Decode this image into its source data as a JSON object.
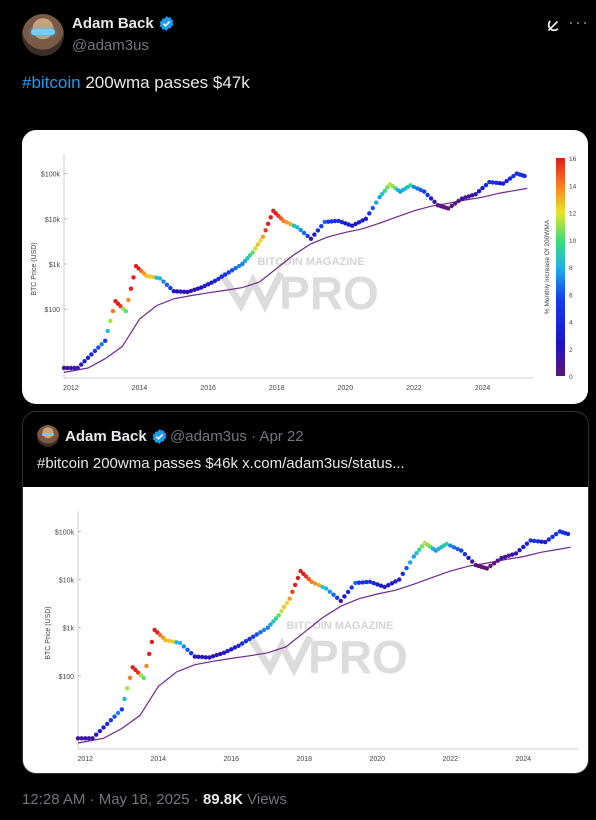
{
  "author": {
    "name": "Adam Back",
    "handle": "@adam3us"
  },
  "post": {
    "hashtag": "#bitcoin",
    "text": " 200wma passes $47k"
  },
  "quote": {
    "author_name": "Adam Back",
    "meta": "@adam3us · Apr 22",
    "text": "#bitcoin 200wma passes $46k x.com/adam3us/status..."
  },
  "footer": {
    "time": "12:28 AM · May 18, 2025 · ",
    "views_count": "89.8K",
    "views_label": " Views"
  },
  "chart_data": {
    "type": "scatter",
    "title": "",
    "xlabel": "",
    "ylabel": "BTC Price (USD)",
    "colorbar_label": "% Monthly Increase Of 200WMA",
    "colorbar_ticks": [
      "0",
      "2",
      "4",
      "6",
      "8",
      "10",
      "12",
      "14",
      "16"
    ],
    "x_ticks": [
      "2012",
      "2014",
      "2016",
      "2018",
      "2020",
      "2022",
      "2024"
    ],
    "y_ticks": [
      "$100",
      "$1k",
      "$10k",
      "$100k"
    ],
    "watermark_top": "BITCOIN MAGAZINE",
    "watermark_main": "PRO",
    "series": [
      {
        "name": "BTC Price (USD)",
        "x": [
          2011.8,
          2012.2,
          2012.6,
          2013.0,
          2013.3,
          2013.6,
          2013.9,
          2014.2,
          2014.6,
          2015.0,
          2015.4,
          2015.8,
          2016.2,
          2016.6,
          2017.0,
          2017.3,
          2017.6,
          2017.9,
          2018.2,
          2018.6,
          2019.0,
          2019.4,
          2019.8,
          2020.2,
          2020.6,
          2021.0,
          2021.3,
          2021.6,
          2021.9,
          2022.3,
          2022.7,
          2023.0,
          2023.4,
          2023.8,
          2024.2,
          2024.6,
          2025.0,
          2025.3
        ],
        "y": [
          5,
          5,
          10,
          20,
          150,
          90,
          900,
          550,
          480,
          250,
          240,
          300,
          420,
          650,
          1000,
          1800,
          4000,
          15000,
          9000,
          6500,
          3600,
          8500,
          9000,
          7000,
          10000,
          30000,
          58000,
          40000,
          55000,
          40000,
          20000,
          17000,
          28000,
          35000,
          65000,
          60000,
          100000,
          85000
        ]
      },
      {
        "name": "200WMA",
        "x": [
          2011.8,
          2012.5,
          2013.0,
          2013.5,
          2014.0,
          2014.5,
          2015.0,
          2015.5,
          2016.0,
          2016.5,
          2017.0,
          2017.5,
          2018.0,
          2018.5,
          2019.0,
          2019.5,
          2020.0,
          2020.5,
          2021.0,
          2021.5,
          2022.0,
          2022.5,
          2023.0,
          2023.5,
          2024.0,
          2024.5,
          2025.0,
          2025.3
        ],
        "y": [
          4,
          5,
          8,
          15,
          60,
          120,
          170,
          200,
          230,
          260,
          300,
          400,
          800,
          1600,
          2800,
          4000,
          5000,
          6000,
          8000,
          11000,
          15000,
          19000,
          22000,
          26000,
          30000,
          37000,
          43000,
          47000
        ]
      }
    ]
  }
}
